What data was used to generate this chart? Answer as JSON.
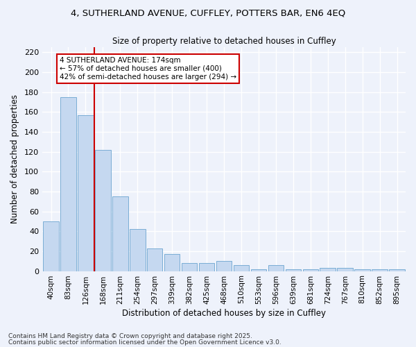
{
  "title_line1": "4, SUTHERLAND AVENUE, CUFFLEY, POTTERS BAR, EN6 4EQ",
  "title_line2": "Size of property relative to detached houses in Cuffley",
  "xlabel": "Distribution of detached houses by size in Cuffley",
  "ylabel": "Number of detached properties",
  "categories": [
    "40sqm",
    "83sqm",
    "126sqm",
    "168sqm",
    "211sqm",
    "254sqm",
    "297sqm",
    "339sqm",
    "382sqm",
    "425sqm",
    "468sqm",
    "510sqm",
    "553sqm",
    "596sqm",
    "639sqm",
    "681sqm",
    "724sqm",
    "767sqm",
    "810sqm",
    "852sqm",
    "895sqm"
  ],
  "bar_values": [
    50,
    175,
    157,
    122,
    75,
    42,
    23,
    17,
    8,
    8,
    10,
    6,
    2,
    6,
    2,
    2,
    3,
    3,
    2,
    2,
    2
  ],
  "bar_color": "#c5d8f0",
  "bar_edge_color": "#7aadd4",
  "annotation_text": "4 SUTHERLAND AVENUE: 174sqm\n← 57% of detached houses are smaller (400)\n42% of semi-detached houses are larger (294) →",
  "vline_x": 2.5,
  "vline_color": "#cc0000",
  "background_color": "#eef2fb",
  "grid_color": "#ffffff",
  "footer1": "Contains HM Land Registry data © Crown copyright and database right 2025.",
  "footer2": "Contains public sector information licensed under the Open Government Licence v3.0.",
  "ylim": [
    0,
    225
  ],
  "yticks": [
    0,
    20,
    40,
    60,
    80,
    100,
    120,
    140,
    160,
    180,
    200,
    220
  ]
}
